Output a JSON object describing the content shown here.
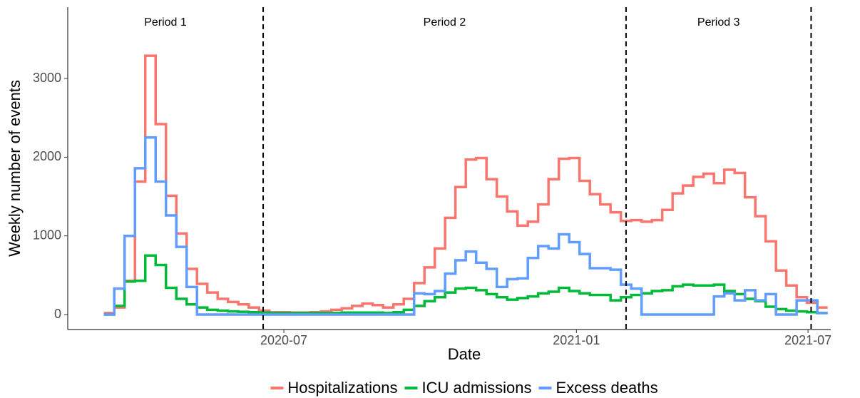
{
  "chart_data": {
    "type": "step",
    "xlabel": "Date",
    "ylabel": "Weekly number of events",
    "x": [
      0,
      1,
      2,
      3,
      4,
      5,
      6,
      7,
      8,
      9,
      10,
      11,
      12,
      13,
      14,
      15,
      16,
      17,
      18,
      19,
      20,
      21,
      22,
      23,
      24,
      25,
      26,
      27,
      28,
      29,
      30,
      31,
      32,
      33,
      34,
      35,
      36,
      37,
      38,
      39,
      40,
      41,
      42,
      43,
      44,
      45,
      46,
      47,
      48,
      49,
      50,
      51,
      52,
      53,
      54,
      55,
      56,
      57,
      58,
      59,
      60,
      61,
      62,
      63,
      64,
      65,
      66,
      67,
      68,
      69
    ],
    "series": [
      {
        "name": "Hospitalizations",
        "color": "#f8766d",
        "values": [
          20,
          90,
          430,
          1690,
          3290,
          2420,
          1510,
          1030,
          580,
          390,
          280,
          200,
          160,
          130,
          90,
          50,
          30,
          30,
          25,
          25,
          30,
          40,
          60,
          80,
          110,
          140,
          120,
          90,
          130,
          200,
          400,
          600,
          840,
          1230,
          1620,
          1970,
          1990,
          1720,
          1500,
          1310,
          1130,
          1180,
          1400,
          1720,
          1980,
          1990,
          1700,
          1530,
          1400,
          1300,
          1190,
          1200,
          1180,
          1200,
          1330,
          1540,
          1640,
          1750,
          1790,
          1670,
          1840,
          1800,
          1490,
          1250,
          930,
          560,
          370,
          220,
          150,
          90
        ]
      },
      {
        "name": "ICU admissions",
        "color": "#00ba38",
        "values": [
          0,
          110,
          420,
          430,
          750,
          630,
          340,
          200,
          130,
          90,
          60,
          50,
          40,
          35,
          30,
          25,
          20,
          20,
          20,
          20,
          20,
          20,
          20,
          25,
          25,
          25,
          25,
          20,
          30,
          60,
          110,
          170,
          220,
          280,
          330,
          340,
          310,
          260,
          220,
          190,
          210,
          230,
          270,
          290,
          340,
          300,
          270,
          250,
          250,
          180,
          220,
          250,
          270,
          300,
          310,
          360,
          380,
          370,
          370,
          380,
          300,
          260,
          200,
          170,
          100,
          70,
          50,
          40,
          30,
          20
        ]
      },
      {
        "name": "Excess deaths",
        "color": "#619cff",
        "values": [
          0,
          330,
          1000,
          1860,
          2250,
          1690,
          1260,
          860,
          350,
          0,
          0,
          0,
          0,
          0,
          0,
          0,
          0,
          0,
          0,
          0,
          0,
          0,
          0,
          0,
          0,
          0,
          0,
          0,
          0,
          0,
          270,
          260,
          300,
          520,
          690,
          800,
          660,
          580,
          350,
          450,
          460,
          720,
          870,
          840,
          1020,
          920,
          770,
          590,
          590,
          570,
          380,
          330,
          0,
          0,
          0,
          0,
          0,
          0,
          0,
          230,
          270,
          180,
          310,
          180,
          260,
          0,
          0,
          180,
          180,
          20
        ]
      }
    ],
    "xlim": [
      -3.5,
      70.3
    ],
    "ylim": [
      -190,
      3907
    ],
    "xticks": [
      {
        "value": 17.4,
        "label": "2020-07"
      },
      {
        "value": 45.7,
        "label": "2021-01"
      },
      {
        "value": 68.1,
        "label": "2021-07"
      }
    ],
    "yticks": [
      0,
      1000,
      2000,
      3000
    ],
    "period_boundaries": [
      15.4,
      50.5,
      68.4
    ],
    "period_labels": [
      "Period 1",
      "Period 2",
      "Period 3"
    ],
    "legend": "bottom"
  }
}
